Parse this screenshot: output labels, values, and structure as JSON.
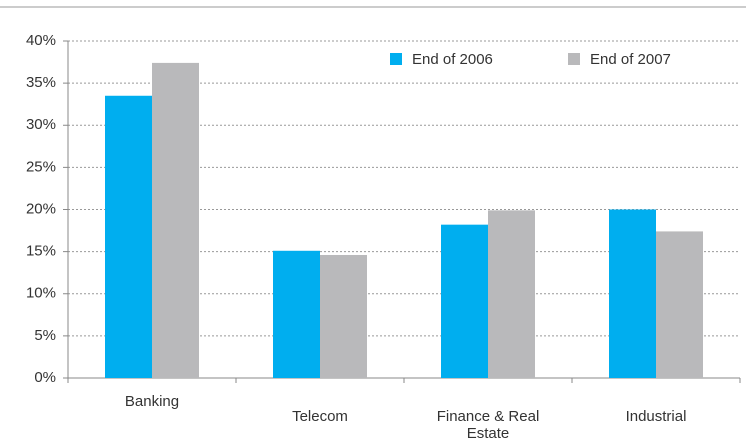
{
  "chart_data": {
    "type": "bar",
    "categories": [
      "Banking",
      "Telecom",
      "Finance & Real Estate",
      "Industrial"
    ],
    "series": [
      {
        "name": "End of 2006",
        "color": "#00aeef",
        "values": [
          33.5,
          15.1,
          18.2,
          20.0
        ]
      },
      {
        "name": "End of 2007",
        "color": "#b9b9bb",
        "values": [
          37.4,
          14.6,
          19.9,
          17.4
        ]
      }
    ],
    "ylim": [
      0,
      40
    ],
    "yticks": [
      {
        "value": 0,
        "label": "0%"
      },
      {
        "value": 5,
        "label": "5%"
      },
      {
        "value": 10,
        "label": "10%"
      },
      {
        "value": 15,
        "label": "15%"
      },
      {
        "value": 20,
        "label": "20%"
      },
      {
        "value": 25,
        "label": "25%"
      },
      {
        "value": 30,
        "label": "30%"
      },
      {
        "value": 35,
        "label": "35%"
      },
      {
        "value": 40,
        "label": "40%"
      }
    ],
    "grid": true,
    "legend": "top-right"
  }
}
